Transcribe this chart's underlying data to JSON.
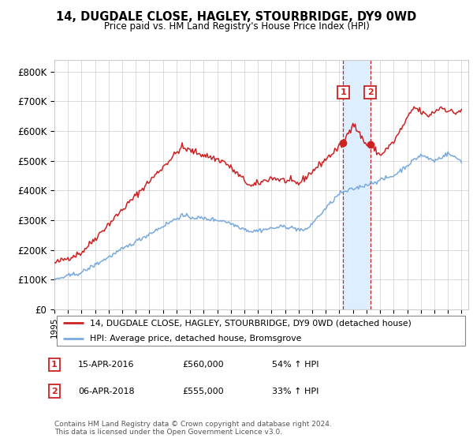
{
  "title": "14, DUGDALE CLOSE, HAGLEY, STOURBRIDGE, DY9 0WD",
  "subtitle": "Price paid vs. HM Land Registry's House Price Index (HPI)",
  "legend_line1": "14, DUGDALE CLOSE, HAGLEY, STOURBRIDGE, DY9 0WD (detached house)",
  "legend_line2": "HPI: Average price, detached house, Bromsgrove",
  "sale1_date": "15-APR-2016",
  "sale1_price": "£560,000",
  "sale1_hpi": "54% ↑ HPI",
  "sale2_date": "06-APR-2018",
  "sale2_price": "£555,000",
  "sale2_hpi": "33% ↑ HPI",
  "footnote1": "Contains HM Land Registry data © Crown copyright and database right 2024.",
  "footnote2": "This data is licensed under the Open Government Licence v3.0.",
  "red_color": "#cc2222",
  "blue_color": "#7aaadd",
  "highlight_color": "#ddeeff",
  "ylim": [
    0,
    840000
  ],
  "yticks": [
    0,
    100000,
    200000,
    300000,
    400000,
    500000,
    600000,
    700000,
    800000
  ],
  "ytick_labels": [
    "£0",
    "£100K",
    "£200K",
    "£300K",
    "£400K",
    "£500K",
    "£600K",
    "£700K",
    "£800K"
  ],
  "sale1_x": 2016.29,
  "sale1_y": 560000,
  "sale2_x": 2018.27,
  "sale2_y": 555000,
  "xmin": 1995,
  "xmax": 2025.5
}
